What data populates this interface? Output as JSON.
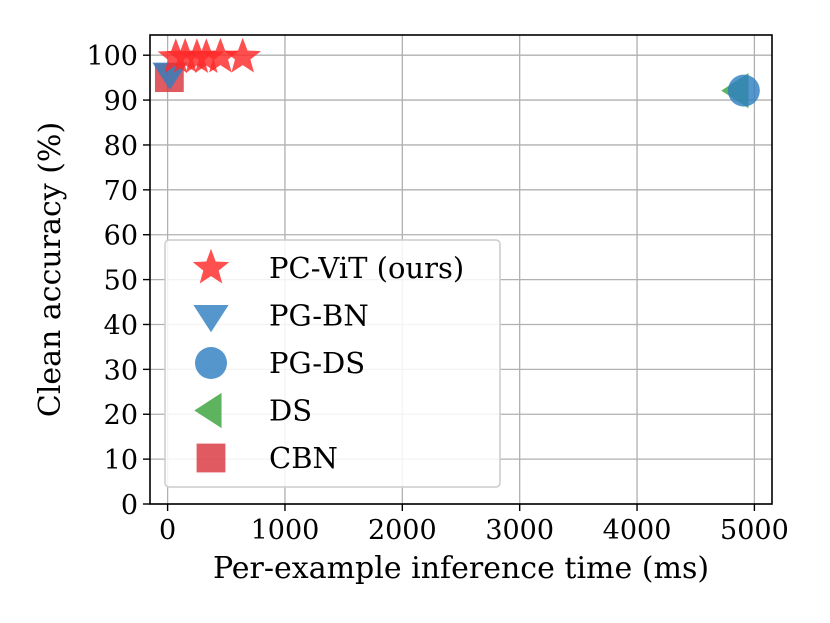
{
  "chart_data": {
    "type": "scatter",
    "title": "",
    "xlabel": "Per-example inference time (ms)",
    "ylabel": "Clean accuracy (%)",
    "xlim": [
      -150,
      5150
    ],
    "ylim": [
      0,
      104.5
    ],
    "xticks": [
      0,
      1000,
      2000,
      3000,
      4000,
      5000
    ],
    "yticks": [
      0,
      10,
      20,
      30,
      40,
      50,
      60,
      70,
      80,
      90,
      100
    ],
    "grid": true,
    "legend_position": "lower-left",
    "series": [
      {
        "name": "PC-ViT (ours)",
        "marker": "star",
        "color": "#ff2a2a",
        "points": [
          [
            70,
            99.5
          ],
          [
            150,
            99.6
          ],
          [
            250,
            99.5
          ],
          [
            330,
            99.5
          ],
          [
            450,
            99.6
          ],
          [
            640,
            99.6
          ]
        ]
      },
      {
        "name": "PG-BN",
        "marker": "triangle-down",
        "color": "#2f7fc1",
        "points": [
          [
            20,
            96.0
          ]
        ]
      },
      {
        "name": "PG-DS",
        "marker": "circle",
        "color": "#2f7fc1",
        "points": [
          [
            4910,
            92.1
          ]
        ]
      },
      {
        "name": "DS",
        "marker": "triangle-left",
        "color": "#3aa33a",
        "points": [
          [
            4860,
            92.1
          ]
        ]
      },
      {
        "name": "CBN",
        "marker": "square",
        "color": "#d9363e",
        "points": [
          [
            15,
            95.0
          ]
        ]
      }
    ]
  }
}
